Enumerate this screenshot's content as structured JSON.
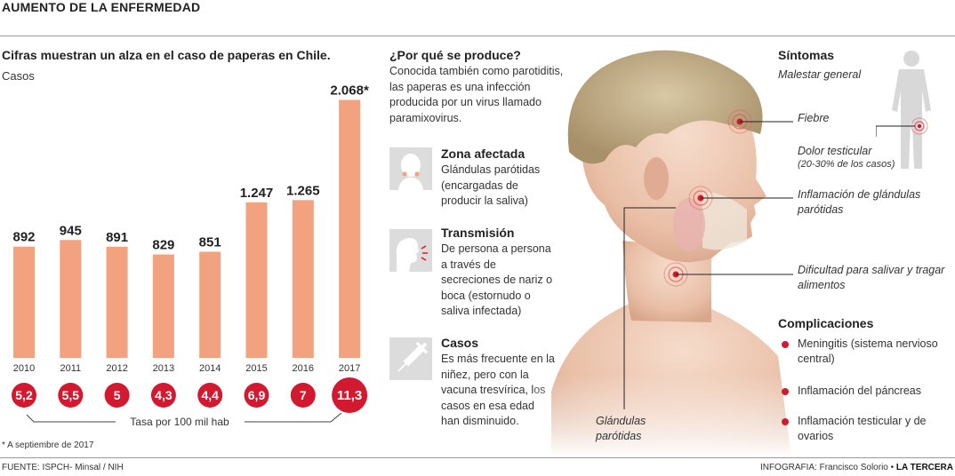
{
  "header": {
    "title": "AUMENTO DE LA ENFERMEDAD"
  },
  "chart_data": {
    "type": "bar",
    "title": "Cifras muestran un alza en el caso de paperas en Chile.",
    "ylabel": "Casos",
    "categories": [
      "2010",
      "2011",
      "2012",
      "2013",
      "2014",
      "2015",
      "2016",
      "2017"
    ],
    "values": [
      892,
      945,
      891,
      829,
      851,
      1247,
      1265,
      2068
    ],
    "value_labels": [
      "892",
      "945",
      "891",
      "829",
      "851",
      "1.247",
      "1.265",
      "2.068*"
    ],
    "ylim": [
      0,
      2150
    ],
    "bar_color": "#f2a27e",
    "rate_series": {
      "name": "Tasa por 100 mil hab",
      "values": [
        5.2,
        5.5,
        5,
        4.3,
        4.4,
        6.9,
        7,
        11.3
      ],
      "labels": [
        "5,2",
        "5,5",
        "5",
        "4,3",
        "4,4",
        "6,9",
        "7",
        "11,3"
      ],
      "circle_color": "#d3192f"
    }
  },
  "footnote": "* A septiembre de 2017",
  "footer": {
    "source": "FUENTE: ISPCH- Minsal  / NIH",
    "credit_prefix": "INFOGRAFIA: Francisco Solorio • ",
    "credit_brand": "LA TERCERA"
  },
  "middle": {
    "heading": "¿Por qué se produce?",
    "intro": "Conocida también como parotiditis, las paperas es una infección producida por un virus llamado paramixovirus.",
    "items": [
      {
        "icon": "face-glands-icon",
        "title": "Zona afectada",
        "text": "Glándulas parótidas (encargadas de producir la saliva)"
      },
      {
        "icon": "sneeze-icon",
        "title": "Transmisión",
        "text": "De persona a persona a través de secreciones de nariz o boca (estornudo o saliva infectada)"
      },
      {
        "icon": "syringe-icon",
        "title": "Casos",
        "text": "Es más frecuente en la niñez, pero con la vacuna tresvírica, los casos en esa edad han disminuido."
      }
    ]
  },
  "illustration": {
    "gland_label": "Glándulas parótidas"
  },
  "symptoms": {
    "heading": "Síntomas",
    "general": "Malestar general",
    "fever": "Fiebre",
    "testicular": "Dolor testicular",
    "testicular_note": "(20-30% de los casos)",
    "inflammation": "Inflamación de glándulas parótidas",
    "swallow": "Dificultad para salivar y tragar alimentos"
  },
  "complications": {
    "heading": "Complicaciones",
    "items": [
      "Meningitis (sistema nervioso central)",
      "Inflamación del páncreas",
      "Inflamación testicular  y de ovarios"
    ]
  }
}
